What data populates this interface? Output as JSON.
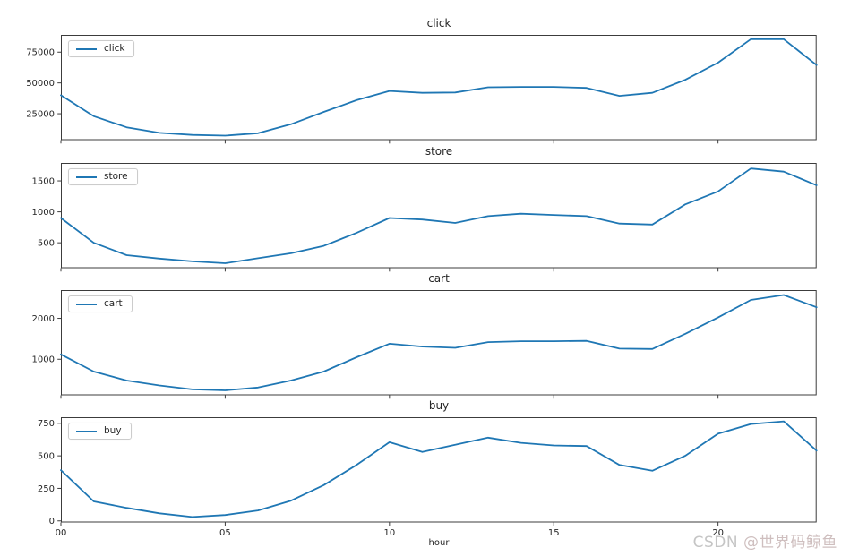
{
  "figure": {
    "watermark": {
      "brand": "CSDN ",
      "handle": "@世界码鲸鱼"
    }
  },
  "x_axis": {
    "label": "hour",
    "xlim": [
      0,
      23
    ],
    "hours": [
      0,
      1,
      2,
      3,
      4,
      5,
      6,
      7,
      8,
      9,
      10,
      11,
      12,
      13,
      14,
      15,
      16,
      17,
      18,
      19,
      20,
      21,
      22,
      23
    ],
    "ticks": [
      0,
      5,
      10,
      15,
      20
    ],
    "tick_labels": [
      "00",
      "05",
      "10",
      "15",
      "20"
    ]
  },
  "chart_data": [
    {
      "type": "line",
      "title": "click",
      "legend_label": "click",
      "line_color": "#1f77b4",
      "ylim": [
        3600,
        89000
      ],
      "yticks": [
        25000,
        50000,
        75000
      ],
      "values": [
        40000,
        23000,
        14000,
        9500,
        7800,
        7200,
        9200,
        16500,
        26500,
        36000,
        43500,
        42000,
        42300,
        46500,
        46800,
        46800,
        46000,
        39500,
        42000,
        52500,
        66500,
        85500,
        85500,
        64500
      ]
    },
    {
      "type": "line",
      "title": "store",
      "legend_label": "store",
      "line_color": "#1f77b4",
      "ylim": [
        90,
        1790
      ],
      "yticks": [
        500,
        1000,
        1500
      ],
      "values": [
        900,
        500,
        300,
        245,
        200,
        170,
        250,
        330,
        450,
        660,
        900,
        875,
        820,
        930,
        970,
        950,
        930,
        810,
        795,
        1120,
        1330,
        1700,
        1650,
        1430
      ]
    },
    {
      "type": "line",
      "title": "cart",
      "legend_label": "cart",
      "line_color": "#1f77b4",
      "ylim": [
        120,
        2690
      ],
      "yticks": [
        1000,
        2000
      ],
      "values": [
        1120,
        700,
        480,
        360,
        265,
        240,
        310,
        480,
        700,
        1050,
        1380,
        1310,
        1280,
        1420,
        1440,
        1440,
        1450,
        1260,
        1250,
        1620,
        2020,
        2450,
        2570,
        2270
      ]
    },
    {
      "type": "line",
      "title": "buy",
      "legend_label": "buy",
      "line_color": "#1f77b4",
      "ylim": [
        -12,
        797
      ],
      "yticks": [
        0,
        250,
        500,
        750
      ],
      "values": [
        390,
        150,
        100,
        58,
        30,
        45,
        80,
        155,
        275,
        430,
        605,
        530,
        585,
        640,
        600,
        580,
        575,
        430,
        385,
        500,
        670,
        745,
        765,
        540
      ]
    }
  ]
}
